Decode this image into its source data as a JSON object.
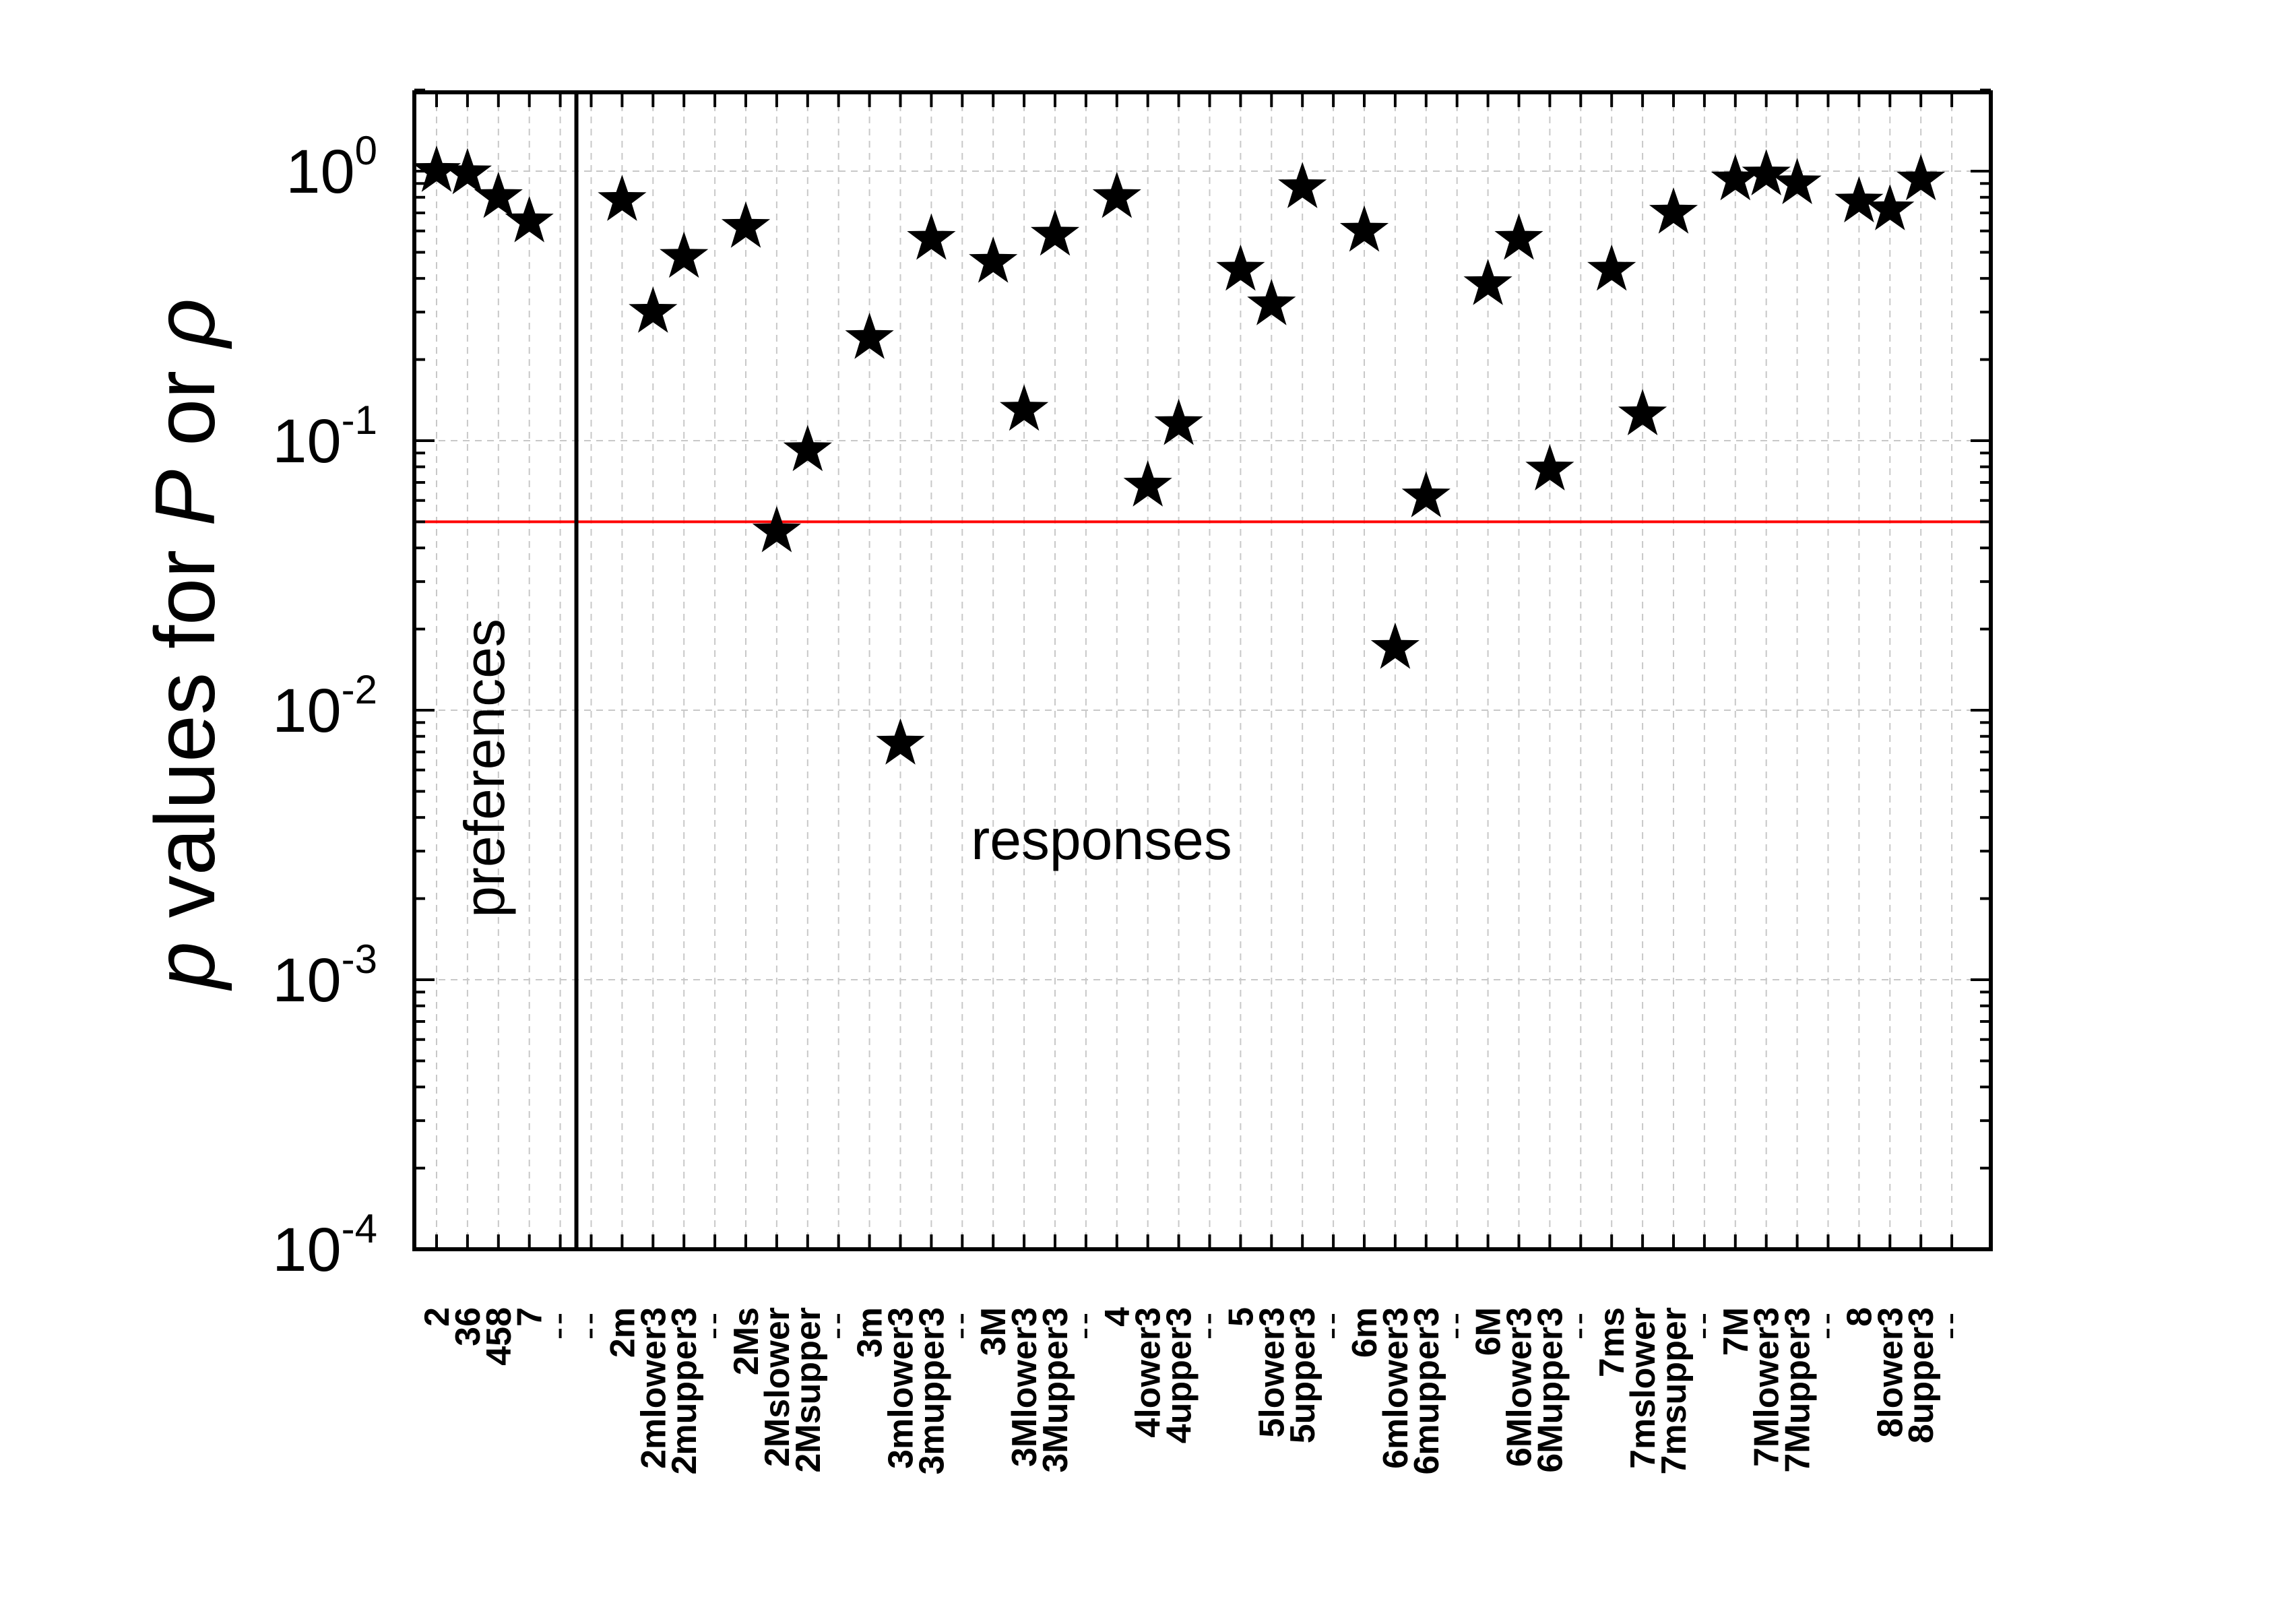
{
  "chart_data": {
    "type": "scatter",
    "marker": "star",
    "marker_color": "#000000",
    "reference_line": {
      "y": 0.05,
      "color": "#ff0000"
    },
    "divider_after_index": 4,
    "ylabel": {
      "p": "p",
      "rest": " values for ",
      "P": "P",
      "or": " or ",
      "rho": "ρ"
    },
    "y_scale": "log",
    "ylim": [
      0.0001,
      2
    ],
    "grid": true,
    "ytick_labels": [
      {
        "exp": 0,
        "base": "10",
        "sup": "0"
      },
      {
        "exp": -1,
        "base": "10",
        "sup": "-1"
      },
      {
        "exp": -2,
        "base": "10",
        "sup": "-2"
      },
      {
        "exp": -3,
        "base": "10",
        "sup": "-3"
      },
      {
        "exp": -4,
        "base": "10",
        "sup": "-4"
      }
    ],
    "annotations": [
      "preferences",
      "responses"
    ],
    "categories": [
      "2",
      "36",
      "458",
      "7",
      "",
      "",
      "2m",
      "2mlower3",
      "2mupper3",
      "",
      "2Ms",
      "2Mslower",
      "2Msupper",
      "",
      "3m",
      "3mlower3",
      "3mupper3",
      "",
      "3M",
      "3Mlower3",
      "3Mupper3",
      "",
      "4",
      "4lower3",
      "4upper3",
      "",
      "5",
      "5lower3",
      "5upper3",
      "",
      "6m",
      "6mlower3",
      "6mupper3",
      "",
      "6M",
      "6Mlower3",
      "6Mupper3",
      "",
      "7ms",
      "7mslower",
      "7msupper",
      "",
      "7M",
      "7Mlower3",
      "7Mupper3",
      "",
      "8",
      "8lower3",
      "8upper3",
      ""
    ],
    "values": [
      1.0,
      0.98,
      0.8,
      0.65,
      null,
      null,
      0.78,
      0.3,
      0.48,
      null,
      0.62,
      0.046,
      0.092,
      null,
      0.24,
      0.0075,
      0.56,
      null,
      0.46,
      0.13,
      0.58,
      null,
      0.8,
      0.068,
      0.115,
      null,
      0.43,
      0.32,
      0.87,
      null,
      0.6,
      0.017,
      0.062,
      null,
      0.38,
      0.56,
      0.078,
      null,
      0.43,
      0.125,
      0.7,
      null,
      0.93,
      0.97,
      0.9,
      null,
      0.77,
      0.72,
      0.93,
      null
    ]
  }
}
